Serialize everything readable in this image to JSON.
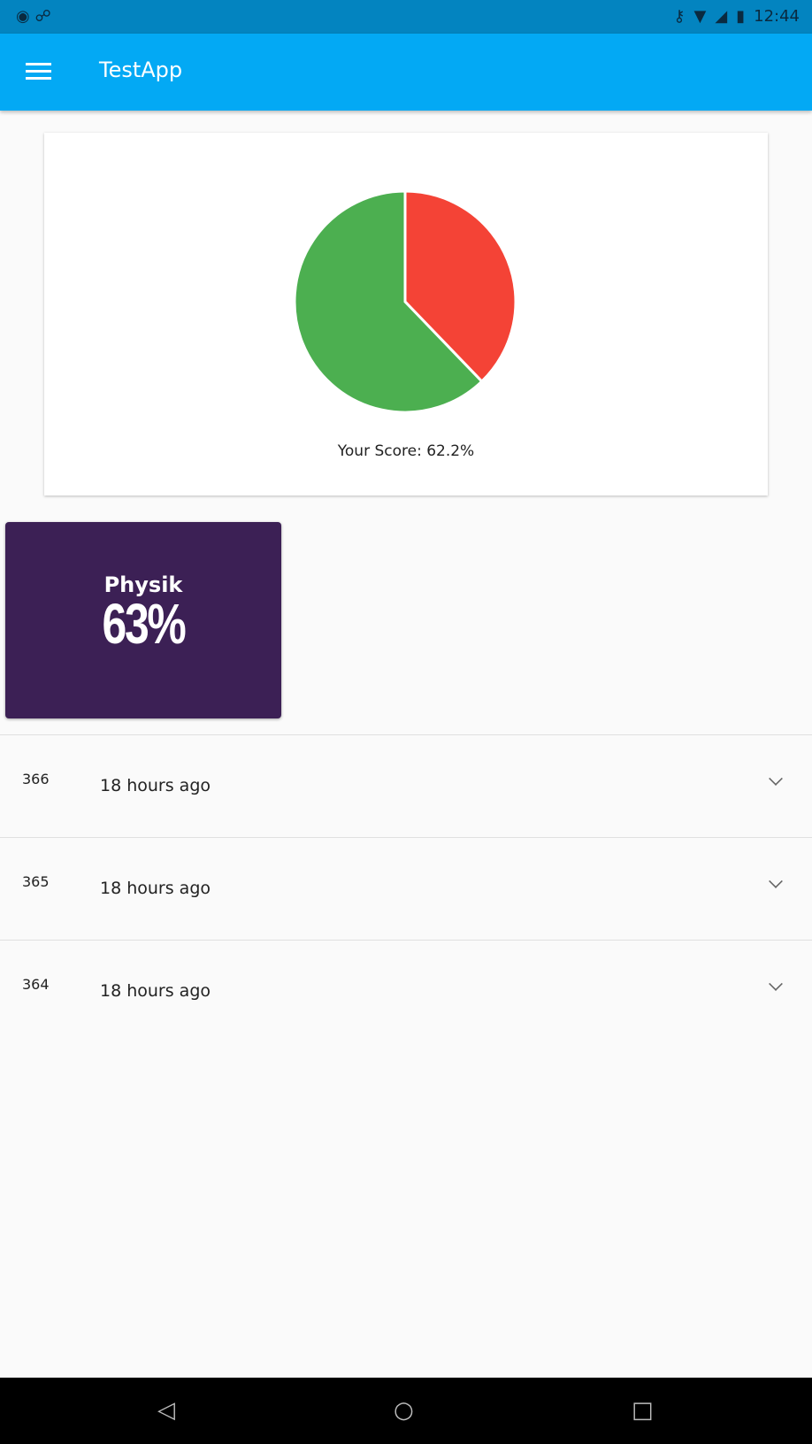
{
  "status_bar": {
    "time": "12:44",
    "icons": [
      "record-icon",
      "link-icon",
      "vpn-key-icon",
      "wifi-icon",
      "signal-icon",
      "battery-icon"
    ]
  },
  "app_bar": {
    "title": "TestApp",
    "menu_icon": "hamburger-menu-icon"
  },
  "score_card": {
    "score_label": "Your Score: 62.2%"
  },
  "chart_data": {
    "type": "pie",
    "values": [
      37.8,
      62.2
    ],
    "colors": [
      "#f44336",
      "#4caf50"
    ]
  },
  "subject_tile": {
    "subject": "Physik",
    "percent": "63%",
    "color": "#3c2055"
  },
  "attempts": [
    {
      "id": "366",
      "time": "18 hours ago"
    },
    {
      "id": "365",
      "time": "18 hours ago"
    },
    {
      "id": "364",
      "time": "18 hours ago"
    }
  ],
  "nav_bar": {
    "icons": [
      "back-icon",
      "home-icon",
      "recents-icon"
    ]
  },
  "colors": {
    "app_bar": "#03a9f4",
    "status_bar": "#0384c0"
  }
}
